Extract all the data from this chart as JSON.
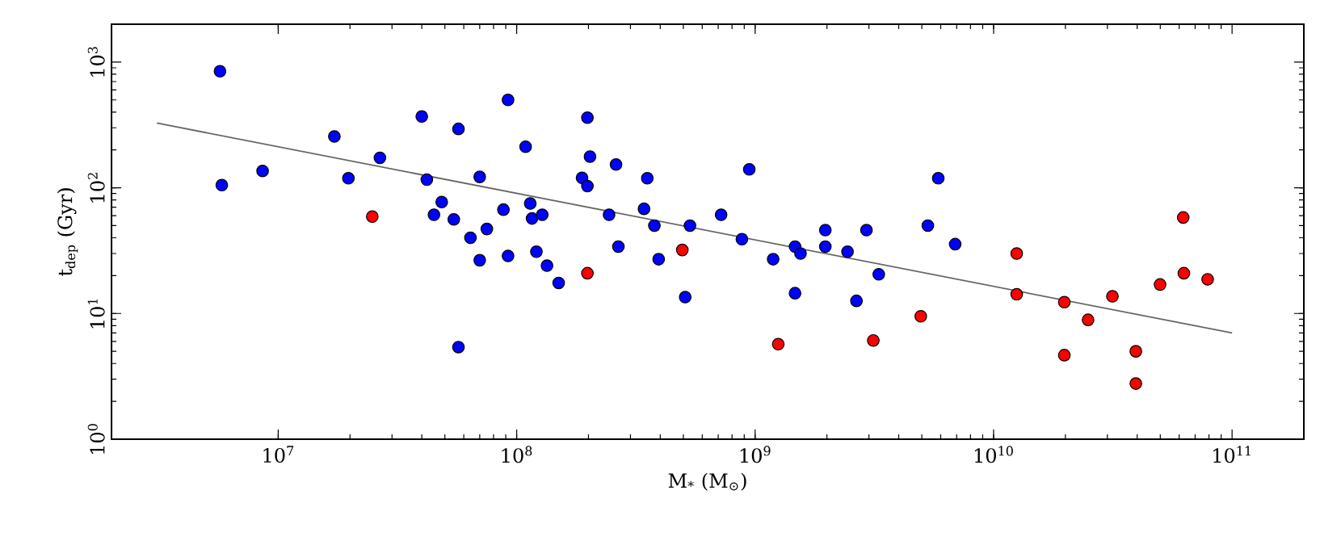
{
  "chart_data": {
    "type": "scatter",
    "xlabel": "M$_{*}$ (M$_{⊙}$)",
    "ylabel": "t$_{dep}$ (Gyr)",
    "log": "xy",
    "xlim": [
      2000000,
      200000000000
    ],
    "ylim": [
      1,
      2000
    ],
    "xticks": [
      {
        "value": 10000000,
        "label": "10$^{7}$"
      },
      {
        "value": 100000000,
        "label": "10$^{8}$"
      },
      {
        "value": 1000000000,
        "label": "10$^{9}$"
      },
      {
        "value": 10000000000,
        "label": "10$^{10}$"
      },
      {
        "value": 100000000000,
        "label": "10$^{11}$"
      }
    ],
    "yticks": [
      {
        "value": 1,
        "label": "10$^{0}$"
      },
      {
        "value": 10,
        "label": "10$^{1}$"
      },
      {
        "value": 100,
        "label": "10$^{2}$"
      },
      {
        "value": 1000,
        "label": "10$^{3}$"
      }
    ],
    "series": [
      {
        "marker": "circle",
        "color": "#0000ff",
        "x": [
          5700000,
          5800000,
          8600000,
          17200000,
          19700000,
          26700000,
          40000000,
          42000000,
          45000000,
          48500000,
          54500000,
          57000000,
          57000000,
          64000000,
          70000000,
          70000000,
          75000000,
          88000000,
          92000000,
          92000000,
          109000000,
          114000000,
          116000000,
          128000000,
          121000000,
          134000000,
          150000000,
          188000000,
          198000000,
          198000000,
          203000000,
          244000000,
          261000000,
          267000000,
          342000000,
          353000000,
          378000000,
          394000000,
          533000000,
          509000000,
          720000000,
          880000000,
          945000000,
          1190000000,
          1470000000,
          1550000000,
          1470000000,
          1970000000,
          1970000000,
          2440000000,
          2660000000,
          2930000000,
          3300000000,
          5300000000,
          5860000000,
          6900000000
        ],
        "values": [
          845,
          105,
          136,
          256,
          119,
          173,
          369,
          116,
          61,
          77,
          56,
          294,
          5.4,
          40,
          122,
          26.5,
          47,
          67,
          500,
          28.7,
          212,
          75,
          57,
          61,
          31,
          24,
          17.5,
          120,
          361,
          103,
          177,
          61,
          153,
          34,
          68,
          119,
          50,
          27,
          50,
          13.5,
          61,
          39,
          140,
          27,
          34,
          30,
          14.5,
          46,
          34,
          31,
          12.6,
          46,
          20.5,
          50,
          119,
          35.6
        ]
      },
      {
        "marker": "circle",
        "color": "#ff0000",
        "x": [
          24800000,
          198000000,
          495000000,
          1250000000,
          3130000000,
          4950000000,
          12500000000,
          12500000000,
          19800000000,
          19800000000,
          24900000000,
          31500000000,
          39500000000,
          39500000000,
          49900000000,
          62400000000,
          62800000000,
          79000000000
        ],
        "values": [
          59,
          20.9,
          32,
          5.7,
          6.1,
          9.5,
          30,
          14.2,
          12.3,
          4.66,
          8.9,
          13.7,
          5.0,
          2.77,
          17.0,
          58,
          20.9,
          18.7
        ]
      },
      {
        "type": "line",
        "marker": "none",
        "color": "#666666",
        "x": [
          3100000,
          100000000000
        ],
        "values": [
          327,
          7.0
        ]
      }
    ]
  }
}
